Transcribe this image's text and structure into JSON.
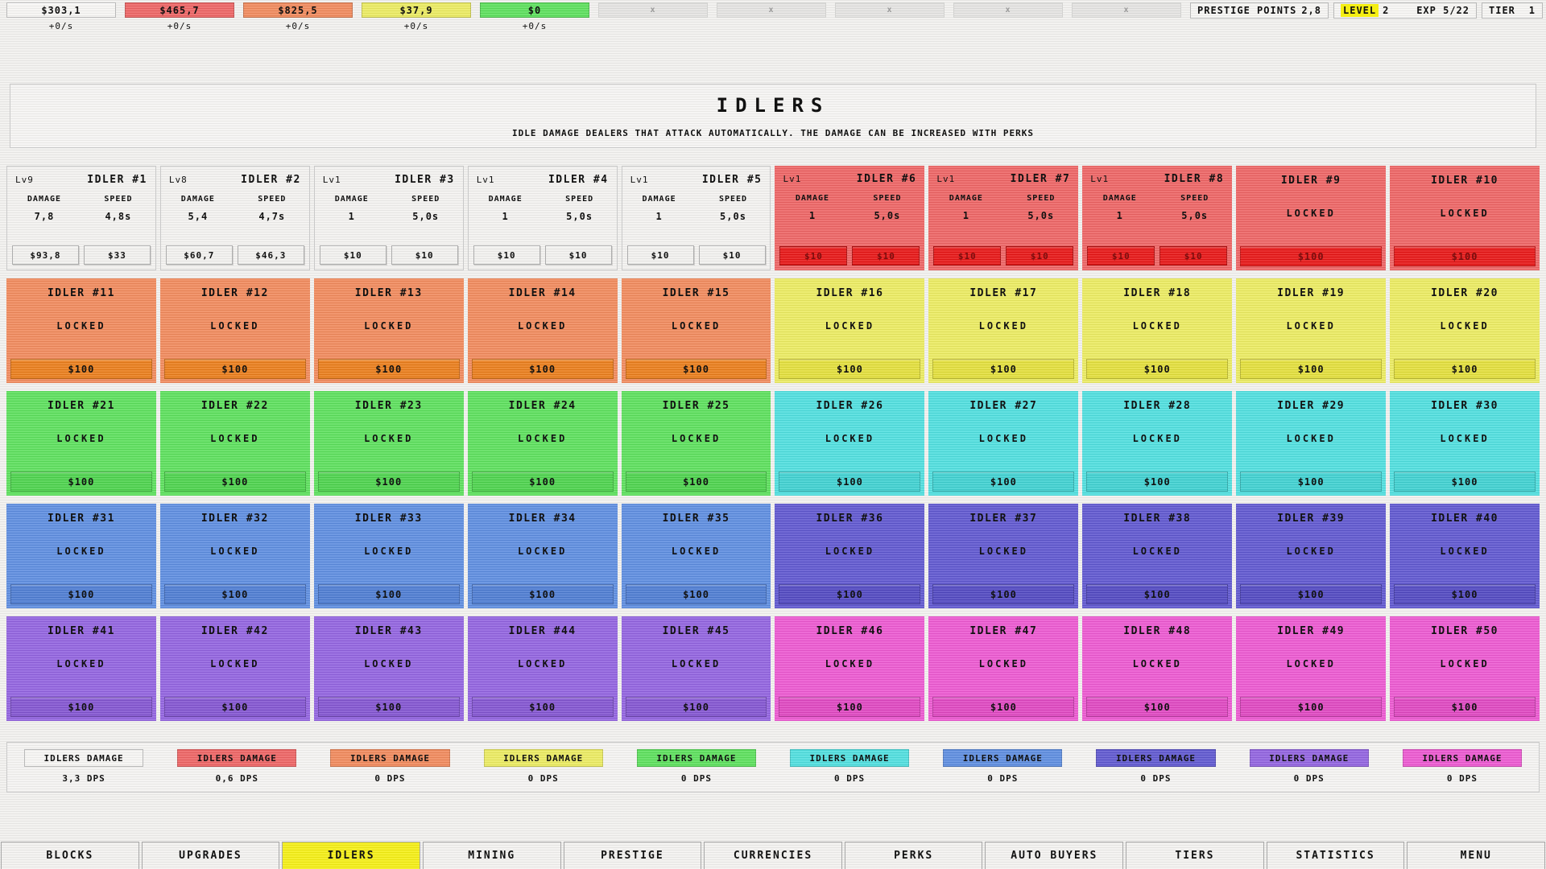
{
  "labels": {
    "damage": "DAMAGE",
    "speed": "SPEED",
    "locked": "LOCKED",
    "disabled_slot": "x"
  },
  "colors": {
    "white": {
      "card": "#f2f1ef",
      "button": "#f1f0ee",
      "button_text": "#111111"
    },
    "red": {
      "card": "#ed6363",
      "button": "#e61414",
      "button_text": "#7a0e0e"
    },
    "orange": {
      "card": "#f0895b",
      "button": "#e97c19",
      "button_text": "#111111"
    },
    "yellow": {
      "card": "#ebeb60",
      "button": "#e2de3a",
      "button_text": "#111111"
    },
    "green": {
      "card": "#5bdf5b",
      "button": "#4bd24b",
      "button_text": "#111111"
    },
    "cyan": {
      "card": "#4edede",
      "button": "#3ed0d0",
      "button_text": "#111111"
    },
    "blue": {
      "card": "#5c8cdf",
      "button": "#4c7bd2",
      "button_text": "#111111"
    },
    "indigo": {
      "card": "#5e56cf",
      "button": "#5047c0",
      "button_text": "#111111"
    },
    "purple": {
      "card": "#9162df",
      "button": "#8253d0",
      "button_text": "#111111"
    },
    "magenta": {
      "card": "#ec57d0",
      "button": "#de46c0",
      "button_text": "#111111"
    },
    "nav_active": "#f4ee12",
    "level_highlight": "#f4ee12",
    "chip_disabled": "#e4e3e1"
  },
  "top_bar": {
    "currencies": [
      {
        "value": "$303,1",
        "rate": "+0/s",
        "color": "white",
        "active": true
      },
      {
        "value": "$465,7",
        "rate": "+0/s",
        "color": "red",
        "active": true
      },
      {
        "value": "$825,5",
        "rate": "+0/s",
        "color": "orange",
        "active": true
      },
      {
        "value": "$37,9",
        "rate": "+0/s",
        "color": "yellow",
        "active": true
      },
      {
        "value": "$0",
        "rate": "+0/s",
        "color": "green",
        "active": true
      },
      {
        "value": "x",
        "rate": "",
        "color": "disabled",
        "active": false
      },
      {
        "value": "x",
        "rate": "",
        "color": "disabled",
        "active": false
      },
      {
        "value": "x",
        "rate": "",
        "color": "disabled",
        "active": false
      },
      {
        "value": "x",
        "rate": "",
        "color": "disabled",
        "active": false
      },
      {
        "value": "x",
        "rate": "",
        "color": "disabled",
        "active": false
      }
    ],
    "prestige": {
      "label": "PRESTIGE POINTS",
      "value": "2,8"
    },
    "level": {
      "label": "LEVEL",
      "value": "2",
      "exp": "EXP 5/22"
    },
    "tier": {
      "label": "TIER",
      "value": "1"
    }
  },
  "header": {
    "title": "IDLERS",
    "subtitle": "IDLE DAMAGE DEALERS THAT ATTACK AUTOMATICALLY. THE DAMAGE CAN BE INCREASED WITH PERKS"
  },
  "idlers": [
    {
      "name": "IDLER #1",
      "level": "Lv9",
      "color": "white",
      "state": "unlocked",
      "damage": "7,8",
      "speed": "4,8s",
      "damage_cost": "$93,8",
      "speed_cost": "$33"
    },
    {
      "name": "IDLER #2",
      "level": "Lv8",
      "color": "white",
      "state": "unlocked",
      "damage": "5,4",
      "speed": "4,7s",
      "damage_cost": "$60,7",
      "speed_cost": "$46,3"
    },
    {
      "name": "IDLER #3",
      "level": "Lv1",
      "color": "white",
      "state": "unlocked",
      "damage": "1",
      "speed": "5,0s",
      "damage_cost": "$10",
      "speed_cost": "$10"
    },
    {
      "name": "IDLER #4",
      "level": "Lv1",
      "color": "white",
      "state": "unlocked",
      "damage": "1",
      "speed": "5,0s",
      "damage_cost": "$10",
      "speed_cost": "$10"
    },
    {
      "name": "IDLER #5",
      "level": "Lv1",
      "color": "white",
      "state": "unlocked",
      "damage": "1",
      "speed": "5,0s",
      "damage_cost": "$10",
      "speed_cost": "$10"
    },
    {
      "name": "IDLER #6",
      "level": "Lv1",
      "color": "red",
      "state": "unlocked",
      "damage": "1",
      "speed": "5,0s",
      "damage_cost": "$10",
      "speed_cost": "$10"
    },
    {
      "name": "IDLER #7",
      "level": "Lv1",
      "color": "red",
      "state": "unlocked",
      "damage": "1",
      "speed": "5,0s",
      "damage_cost": "$10",
      "speed_cost": "$10"
    },
    {
      "name": "IDLER #8",
      "level": "Lv1",
      "color": "red",
      "state": "unlocked",
      "damage": "1",
      "speed": "5,0s",
      "damage_cost": "$10",
      "speed_cost": "$10"
    },
    {
      "name": "IDLER #9",
      "color": "red",
      "state": "locked",
      "cost": "$100"
    },
    {
      "name": "IDLER #10",
      "color": "red",
      "state": "locked",
      "cost": "$100"
    },
    {
      "name": "IDLER #11",
      "color": "orange",
      "state": "locked",
      "cost": "$100"
    },
    {
      "name": "IDLER #12",
      "color": "orange",
      "state": "locked",
      "cost": "$100"
    },
    {
      "name": "IDLER #13",
      "color": "orange",
      "state": "locked",
      "cost": "$100"
    },
    {
      "name": "IDLER #14",
      "color": "orange",
      "state": "locked",
      "cost": "$100"
    },
    {
      "name": "IDLER #15",
      "color": "orange",
      "state": "locked",
      "cost": "$100"
    },
    {
      "name": "IDLER #16",
      "color": "yellow",
      "state": "locked",
      "cost": "$100"
    },
    {
      "name": "IDLER #17",
      "color": "yellow",
      "state": "locked",
      "cost": "$100"
    },
    {
      "name": "IDLER #18",
      "color": "yellow",
      "state": "locked",
      "cost": "$100"
    },
    {
      "name": "IDLER #19",
      "color": "yellow",
      "state": "locked",
      "cost": "$100"
    },
    {
      "name": "IDLER #20",
      "color": "yellow",
      "state": "locked",
      "cost": "$100"
    },
    {
      "name": "IDLER #21",
      "color": "green",
      "state": "locked",
      "cost": "$100"
    },
    {
      "name": "IDLER #22",
      "color": "green",
      "state": "locked",
      "cost": "$100"
    },
    {
      "name": "IDLER #23",
      "color": "green",
      "state": "locked",
      "cost": "$100"
    },
    {
      "name": "IDLER #24",
      "color": "green",
      "state": "locked",
      "cost": "$100"
    },
    {
      "name": "IDLER #25",
      "color": "green",
      "state": "locked",
      "cost": "$100"
    },
    {
      "name": "IDLER #26",
      "color": "cyan",
      "state": "locked",
      "cost": "$100"
    },
    {
      "name": "IDLER #27",
      "color": "cyan",
      "state": "locked",
      "cost": "$100"
    },
    {
      "name": "IDLER #28",
      "color": "cyan",
      "state": "locked",
      "cost": "$100"
    },
    {
      "name": "IDLER #29",
      "color": "cyan",
      "state": "locked",
      "cost": "$100"
    },
    {
      "name": "IDLER #30",
      "color": "cyan",
      "state": "locked",
      "cost": "$100"
    },
    {
      "name": "IDLER #31",
      "color": "blue",
      "state": "locked",
      "cost": "$100"
    },
    {
      "name": "IDLER #32",
      "color": "blue",
      "state": "locked",
      "cost": "$100"
    },
    {
      "name": "IDLER #33",
      "color": "blue",
      "state": "locked",
      "cost": "$100"
    },
    {
      "name": "IDLER #34",
      "color": "blue",
      "state": "locked",
      "cost": "$100"
    },
    {
      "name": "IDLER #35",
      "color": "blue",
      "state": "locked",
      "cost": "$100"
    },
    {
      "name": "IDLER #36",
      "color": "indigo",
      "state": "locked",
      "cost": "$100"
    },
    {
      "name": "IDLER #37",
      "color": "indigo",
      "state": "locked",
      "cost": "$100"
    },
    {
      "name": "IDLER #38",
      "color": "indigo",
      "state": "locked",
      "cost": "$100"
    },
    {
      "name": "IDLER #39",
      "color": "indigo",
      "state": "locked",
      "cost": "$100"
    },
    {
      "name": "IDLER #40",
      "color": "indigo",
      "state": "locked",
      "cost": "$100"
    },
    {
      "name": "IDLER #41",
      "color": "purple",
      "state": "locked",
      "cost": "$100"
    },
    {
      "name": "IDLER #42",
      "color": "purple",
      "state": "locked",
      "cost": "$100"
    },
    {
      "name": "IDLER #43",
      "color": "purple",
      "state": "locked",
      "cost": "$100"
    },
    {
      "name": "IDLER #44",
      "color": "purple",
      "state": "locked",
      "cost": "$100"
    },
    {
      "name": "IDLER #45",
      "color": "purple",
      "state": "locked",
      "cost": "$100"
    },
    {
      "name": "IDLER #46",
      "color": "magenta",
      "state": "locked",
      "cost": "$100"
    },
    {
      "name": "IDLER #47",
      "color": "magenta",
      "state": "locked",
      "cost": "$100"
    },
    {
      "name": "IDLER #48",
      "color": "magenta",
      "state": "locked",
      "cost": "$100"
    },
    {
      "name": "IDLER #49",
      "color": "magenta",
      "state": "locked",
      "cost": "$100"
    },
    {
      "name": "IDLER #50",
      "color": "magenta",
      "state": "locked",
      "cost": "$100"
    }
  ],
  "damage_summary": {
    "label": "IDLERS DAMAGE",
    "entries": [
      {
        "color": "white",
        "dps": "3,3 DPS"
      },
      {
        "color": "red",
        "dps": "0,6 DPS"
      },
      {
        "color": "orange",
        "dps": "0 DPS"
      },
      {
        "color": "yellow",
        "dps": "0 DPS"
      },
      {
        "color": "green",
        "dps": "0 DPS"
      },
      {
        "color": "cyan",
        "dps": "0 DPS"
      },
      {
        "color": "blue",
        "dps": "0 DPS"
      },
      {
        "color": "indigo",
        "dps": "0 DPS"
      },
      {
        "color": "purple",
        "dps": "0 DPS"
      },
      {
        "color": "magenta",
        "dps": "0 DPS"
      }
    ]
  },
  "nav": {
    "items": [
      {
        "label": "BLOCKS",
        "active": false
      },
      {
        "label": "UPGRADES",
        "active": false
      },
      {
        "label": "IDLERS",
        "active": true
      },
      {
        "label": "MINING",
        "active": false
      },
      {
        "label": "PRESTIGE",
        "active": false
      },
      {
        "label": "CURRENCIES",
        "active": false
      },
      {
        "label": "PERKS",
        "active": false
      },
      {
        "label": "AUTO BUYERS",
        "active": false
      },
      {
        "label": "TIERS",
        "active": false
      },
      {
        "label": "STATISTICS",
        "active": false
      },
      {
        "label": "MENU",
        "active": false
      }
    ]
  }
}
